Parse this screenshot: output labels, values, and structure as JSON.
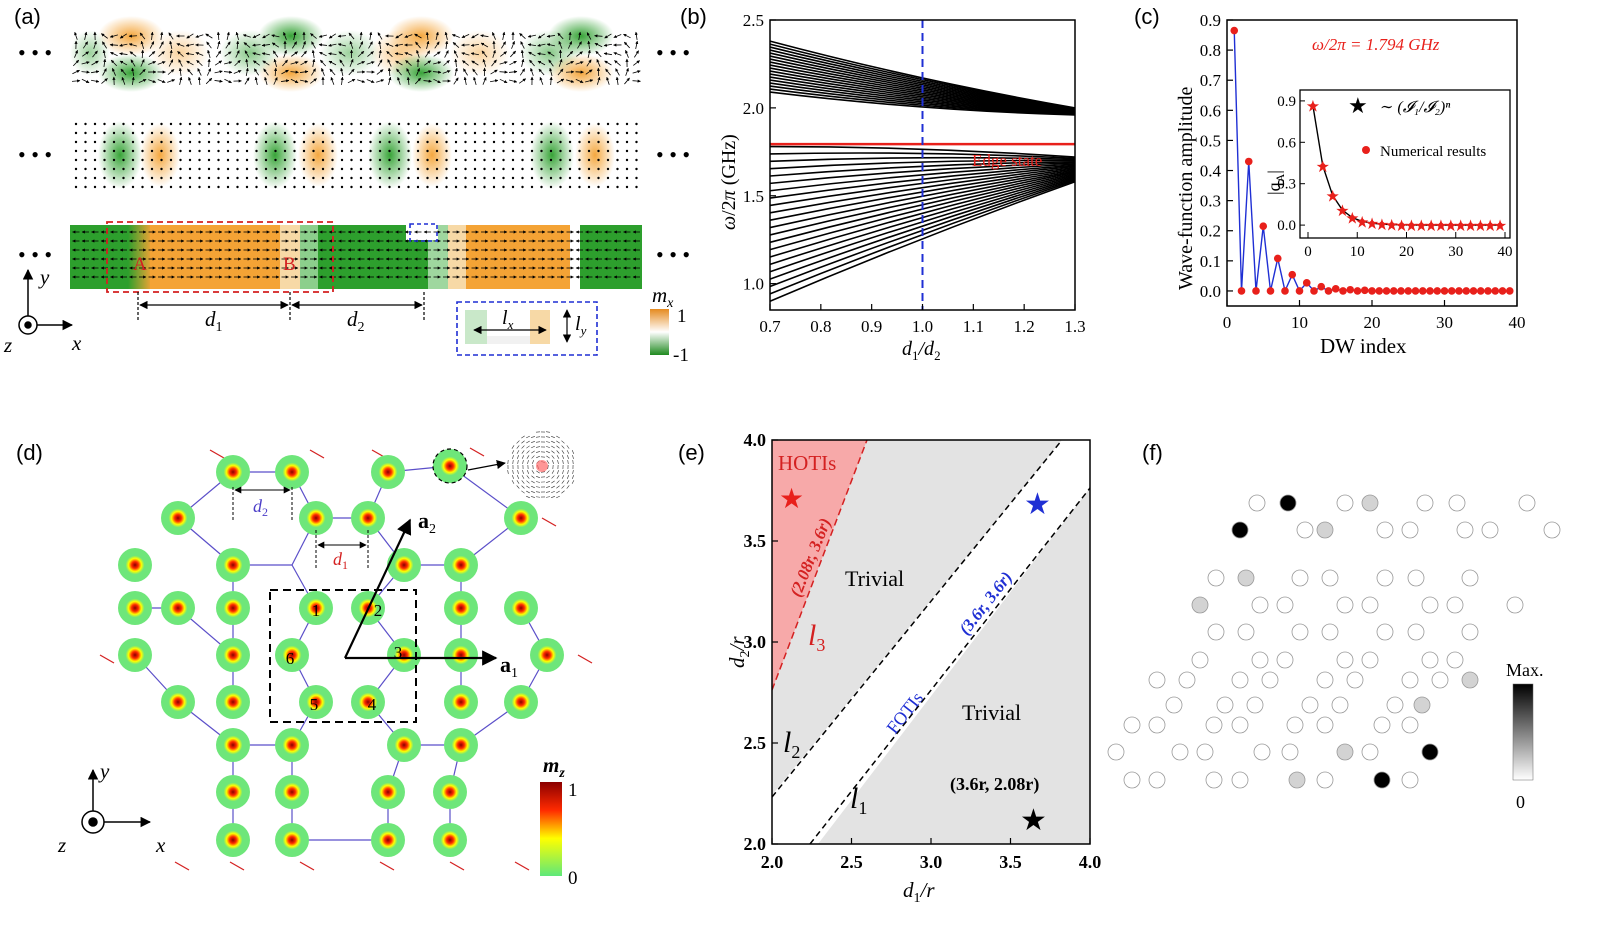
{
  "panels": {
    "a": {
      "label": "(a)",
      "ellipsis": "• • •",
      "point_A": "A",
      "point_B": "B",
      "d1": "d",
      "d1_sub": "1",
      "d2": "d",
      "d2_sub": "2",
      "lx": "l",
      "lx_sub": "x",
      "ly": "l",
      "ly_sub": "y",
      "axis_x": "x",
      "axis_y": "y",
      "axis_z": "z",
      "colorbar_title": "m",
      "colorbar_sub": "x",
      "colorbar_max": "1",
      "colorbar_min": "-1",
      "colors": {
        "positive": "#f4a335",
        "negative": "#2d9f2d"
      }
    },
    "b": {
      "label": "(b)",
      "edge_state_label": "Edge state"
    },
    "c": {
      "label": "(c)",
      "freq_label": "ω/2π = 1.794 GHz",
      "inset_fit_label": "∼ (𝓘₁/𝓘₂)ⁿ",
      "inset_numeric_label": "Numerical results",
      "inset_ylabel": "|q",
      "inset_ylabel_sub": "A",
      "inset_ylabel_end": "|"
    },
    "d": {
      "label": "(d)",
      "d1": "d",
      "d1_sub": "1",
      "d2": "d",
      "d2_sub": "2",
      "a1": "a",
      "a1_sub": "1",
      "a2": "a",
      "a2_sub": "2",
      "sites": [
        "1",
        "2",
        "3",
        "4",
        "5",
        "6"
      ],
      "axis_x": "x",
      "axis_y": "y",
      "axis_z": "z",
      "colorbar_title": "m",
      "colorbar_sub": "z",
      "colorbar_max": "1",
      "colorbar_min": "0"
    },
    "e": {
      "label": "(e)",
      "hotis": "HOTIs",
      "trivial_top": "Trivial",
      "trivial_bottom": "Trivial",
      "fotis": "FOTIs",
      "point_red": "(2.08r, 3.6r)",
      "point_blue": "(3.6r, 3.6r)",
      "point_black": "(3.6r, 2.08r)",
      "l1": "l",
      "l1_sub": "1",
      "l2": "l",
      "l2_sub": "2",
      "l3": "l",
      "l3_sub": "3",
      "xlabel": "d₁/r",
      "ylabel": "d₂/r",
      "x_ticks": [
        "2.0",
        "2.5",
        "3.0",
        "3.5",
        "4.0"
      ],
      "y_ticks": [
        "2.0",
        "2.5",
        "3.0",
        "3.5",
        "4.0"
      ]
    },
    "f": {
      "label": "(f)",
      "colorbar_max": "Max.",
      "colorbar_min": "0"
    }
  },
  "chart_data": [
    {
      "panel": "b",
      "type": "line",
      "xlabel": "d₁/d₂",
      "ylabel": "ω/2π (GHz)",
      "xlim": [
        0.7,
        1.3
      ],
      "ylim": [
        0.85,
        2.5
      ],
      "x_ticks": [
        "0.7",
        "0.8",
        "0.9",
        "1.0",
        "1.1",
        "1.2",
        "1.3"
      ],
      "y_ticks": [
        "1.0",
        "1.5",
        "2.0",
        "2.5"
      ],
      "upper_band": {
        "left": [
          2.09,
          2.38
        ],
        "right": [
          1.96,
          2.0
        ],
        "n_lines": 18
      },
      "lower_band": {
        "left": [
          0.9,
          1.78
        ],
        "right": [
          1.58,
          1.72
        ],
        "n_lines": 22
      },
      "edge_state": 1.794,
      "vline": 1.0,
      "colors": {
        "bands": "#000000",
        "edge": "#e8201b",
        "vline": "#1f2fd4"
      }
    },
    {
      "panel": "c",
      "type": "line",
      "xlabel": "DW index",
      "ylabel": "Wave-function amplitude",
      "xlim": [
        0,
        40
      ],
      "ylim": [
        -0.05,
        0.9
      ],
      "x_ticks": [
        "0",
        "10",
        "20",
        "30",
        "40"
      ],
      "y_ticks": [
        "0.0",
        "0.1",
        "0.2",
        "0.3",
        "0.4",
        "0.5",
        "0.6",
        "0.7",
        "0.8",
        "0.9"
      ],
      "points": [
        [
          1,
          0.865
        ],
        [
          2,
          0
        ],
        [
          3,
          0.43
        ],
        [
          4,
          0
        ],
        [
          5,
          0.215
        ],
        [
          6,
          0
        ],
        [
          7,
          0.108
        ],
        [
          8,
          0
        ],
        [
          9,
          0.054
        ],
        [
          10,
          0
        ],
        [
          11,
          0.027
        ],
        [
          12,
          0
        ],
        [
          13,
          0.014
        ],
        [
          14,
          0
        ],
        [
          15,
          0.007
        ],
        [
          16,
          0
        ],
        [
          17,
          0.004
        ],
        [
          18,
          0
        ],
        [
          19,
          0.002
        ],
        [
          20,
          0
        ],
        [
          21,
          0
        ],
        [
          22,
          0
        ],
        [
          23,
          0
        ],
        [
          24,
          0
        ],
        [
          25,
          0
        ],
        [
          26,
          0
        ],
        [
          27,
          0
        ],
        [
          28,
          0
        ],
        [
          29,
          0
        ],
        [
          30,
          0
        ],
        [
          31,
          0
        ],
        [
          32,
          0
        ],
        [
          33,
          0
        ],
        [
          34,
          0
        ],
        [
          35,
          0
        ],
        [
          36,
          0
        ],
        [
          37,
          0
        ],
        [
          38,
          0
        ],
        [
          39,
          0
        ]
      ],
      "inset": {
        "xlim": [
          0,
          40
        ],
        "ylim": [
          -0.05,
          0.95
        ],
        "x_ticks": [
          "0",
          "10",
          "20",
          "30",
          "40"
        ],
        "y_ticks": [
          "0.0",
          "0.3",
          "0.6",
          "0.9"
        ],
        "points": [
          [
            1,
            0.865
          ],
          [
            3,
            0.43
          ],
          [
            5,
            0.215
          ],
          [
            7,
            0.108
          ],
          [
            9,
            0.054
          ],
          [
            11,
            0.027
          ],
          [
            13,
            0.014
          ],
          [
            15,
            0.007
          ],
          [
            17,
            0.004
          ],
          [
            19,
            0.002
          ],
          [
            21,
            0.001
          ],
          [
            23,
            0
          ],
          [
            25,
            0
          ],
          [
            27,
            0
          ],
          [
            29,
            0
          ],
          [
            31,
            0
          ],
          [
            33,
            0
          ],
          [
            35,
            0
          ],
          [
            37,
            0
          ],
          [
            39,
            0
          ]
        ]
      },
      "colors": {
        "line": "#1f2fd4",
        "points": "#e8201b"
      }
    }
  ]
}
